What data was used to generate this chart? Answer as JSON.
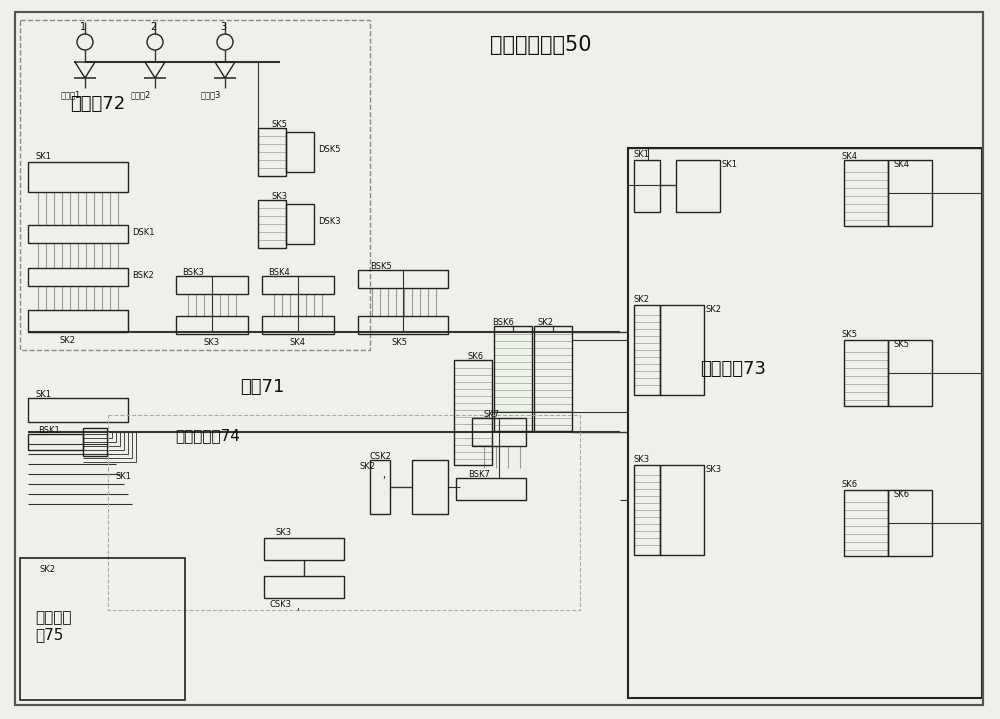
{
  "bg_color": "#f0f0eb",
  "border_color": "#222222",
  "line_color": "#333333",
  "gray_line": "#999999",
  "green_line": "#88aa88",
  "title": "卡件适配装置50",
  "board_power": "电源板72",
  "board_main": "主板71",
  "board_relay": "继电器板73",
  "board_pos": "位置反馈板74",
  "board_remote": "远控输入\n板75",
  "fig_width": 10.0,
  "fig_height": 7.19
}
